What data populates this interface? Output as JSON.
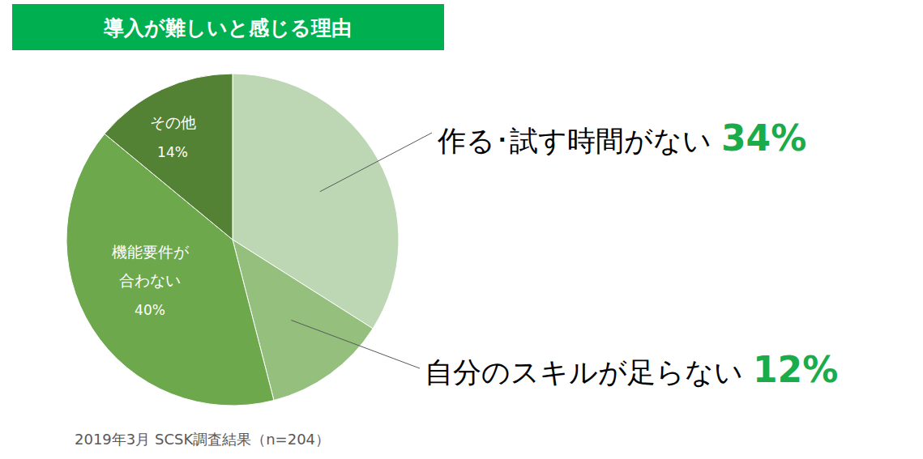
{
  "chart_data": {
    "type": "pie",
    "title": "導入が難しいと感じる理由",
    "categories": [
      "作る･試す時間がない",
      "自分のスキルが足らない",
      "機能要件が\n合わない",
      "その他"
    ],
    "values": [
      34,
      12,
      40,
      14
    ],
    "value_labels": [
      "34%",
      "12%",
      "40%",
      "14%"
    ],
    "colors": [
      "#bdd7b4",
      "#94bf7c",
      "#6ea84c",
      "#548235"
    ],
    "data_labels": true,
    "annotations": [
      "2019年3月 SCSK調査結果（n=204）"
    ]
  }
}
